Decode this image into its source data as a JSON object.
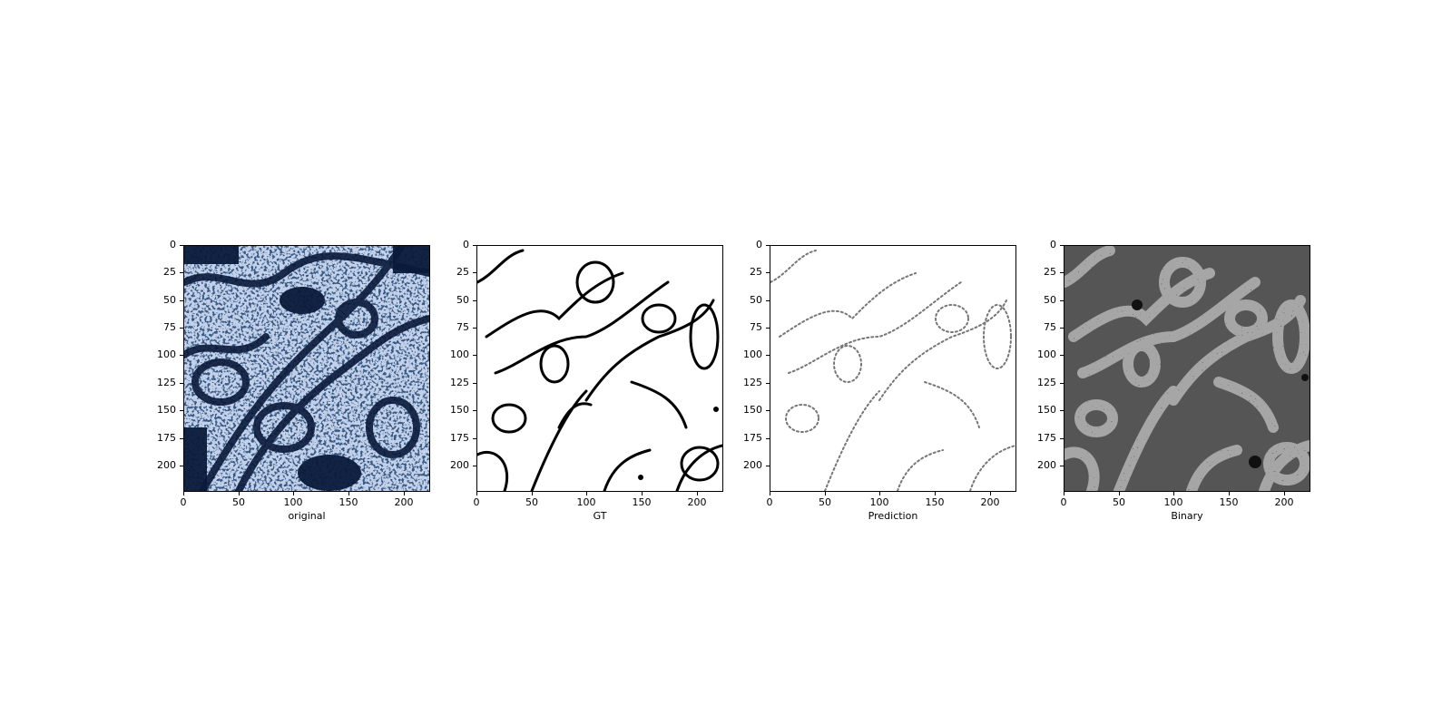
{
  "panels": [
    {
      "id": "original",
      "label": "original"
    },
    {
      "id": "gt",
      "label": "GT"
    },
    {
      "id": "prediction",
      "label": "Prediction"
    },
    {
      "id": "binary",
      "label": "Binary"
    }
  ],
  "axes": {
    "x_ticks": [
      "0",
      "50",
      "100",
      "150",
      "200"
    ],
    "y_ticks": [
      "0",
      "25",
      "50",
      "75",
      "100",
      "125",
      "150",
      "175",
      "200"
    ],
    "x_range": [
      0,
      224
    ],
    "y_range": [
      0,
      224
    ]
  },
  "colors": {
    "original_dark": "#0a1a3a",
    "original_light": "#dfe9f7",
    "gt_edge": "#000000",
    "prediction_edge": "#555555",
    "binary_dark": "#555555",
    "binary_light": "#a6a6a6"
  }
}
